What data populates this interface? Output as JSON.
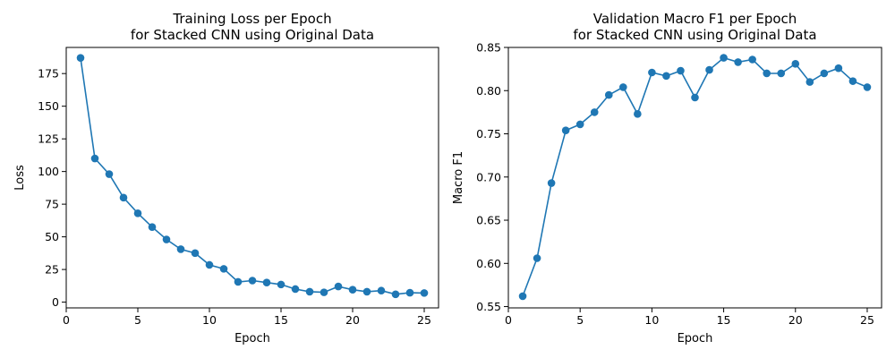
{
  "colors": {
    "series": "#1f77b4",
    "axes": "#000000",
    "background": "#ffffff"
  },
  "chart_data": [
    {
      "type": "line",
      "title": [
        "Training Loss per Epoch",
        "for Stacked CNN using Original Data"
      ],
      "xlabel": "Epoch",
      "ylabel": "Loss",
      "xlim": [
        0,
        26
      ],
      "ylim": [
        -4.4,
        195
      ],
      "xticks": [
        0,
        5,
        10,
        15,
        20,
        25
      ],
      "yticks": [
        0,
        25,
        50,
        75,
        100,
        125,
        150,
        175
      ],
      "grid": false,
      "marker": "circle",
      "x": [
        1,
        2,
        3,
        4,
        5,
        6,
        7,
        8,
        9,
        10,
        11,
        12,
        13,
        14,
        15,
        16,
        17,
        18,
        19,
        20,
        21,
        22,
        23,
        24,
        25
      ],
      "values": [
        187,
        110,
        98,
        80,
        68,
        57.5,
        48,
        40.5,
        37.5,
        28.5,
        25.5,
        15.5,
        16.5,
        15,
        13.5,
        10,
        8,
        7.5,
        12,
        9.5,
        8,
        8.8,
        6,
        7.2,
        7
      ]
    },
    {
      "type": "line",
      "title": [
        "Validation Macro F1 per Epoch",
        "for Stacked CNN using Original Data"
      ],
      "xlabel": "Epoch",
      "ylabel": "Macro F1",
      "xlim": [
        0,
        26
      ],
      "ylim": [
        0.5485,
        0.85
      ],
      "xticks": [
        0,
        5,
        10,
        15,
        20,
        25
      ],
      "yticks": [
        0.55,
        0.6,
        0.65,
        0.7,
        0.75,
        0.8,
        0.85
      ],
      "grid": false,
      "marker": "circle",
      "x": [
        1,
        2,
        3,
        4,
        5,
        6,
        7,
        8,
        9,
        10,
        11,
        12,
        13,
        14,
        15,
        16,
        17,
        18,
        19,
        20,
        21,
        22,
        23,
        24,
        25
      ],
      "values": [
        0.562,
        0.606,
        0.693,
        0.754,
        0.761,
        0.775,
        0.795,
        0.804,
        0.773,
        0.821,
        0.817,
        0.823,
        0.792,
        0.824,
        0.838,
        0.833,
        0.836,
        0.82,
        0.82,
        0.831,
        0.81,
        0.82,
        0.826,
        0.811,
        0.804
      ]
    }
  ]
}
